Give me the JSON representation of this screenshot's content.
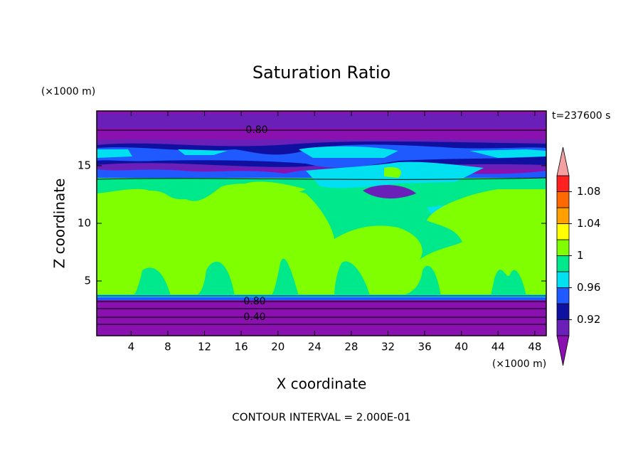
{
  "chart_data": {
    "type": "contour",
    "title": "Saturation Ratio",
    "x_label": "X coordinate",
    "y_label": "Z coordinate",
    "x_units": "(×1000 m)",
    "y_units": "(×1000 m)",
    "time_label": "t=237600 s",
    "footer": "CONTOUR INTERVAL = 2.000E-01",
    "contour_labels": [
      "0.80",
      "0.80",
      "0.40"
    ],
    "xlim": [
      0.25,
      49.25
    ],
    "ylim": [
      0.25,
      19.75
    ],
    "xticks": [
      4,
      8,
      12,
      16,
      20,
      24,
      28,
      32,
      36,
      40,
      44,
      48
    ],
    "yticks": [
      5,
      10,
      15
    ],
    "colorbar": {
      "levels": [
        0.9,
        0.92,
        0.94,
        0.96,
        0.98,
        1,
        1.02,
        1.04,
        1.06,
        1.08,
        1.1
      ],
      "colors": [
        "#6a1fb8",
        "#1010a0",
        "#1e5aff",
        "#00e0f0",
        "#00e88c",
        "#80ff00",
        "#ffff00",
        "#ffa000",
        "#ff6a00",
        "#ff2020"
      ],
      "under_color": "#8a10b0",
      "over_color": "#f4a0a0",
      "ticks": [
        0.92,
        0.96,
        1,
        1.04,
        1.08
      ]
    }
  }
}
